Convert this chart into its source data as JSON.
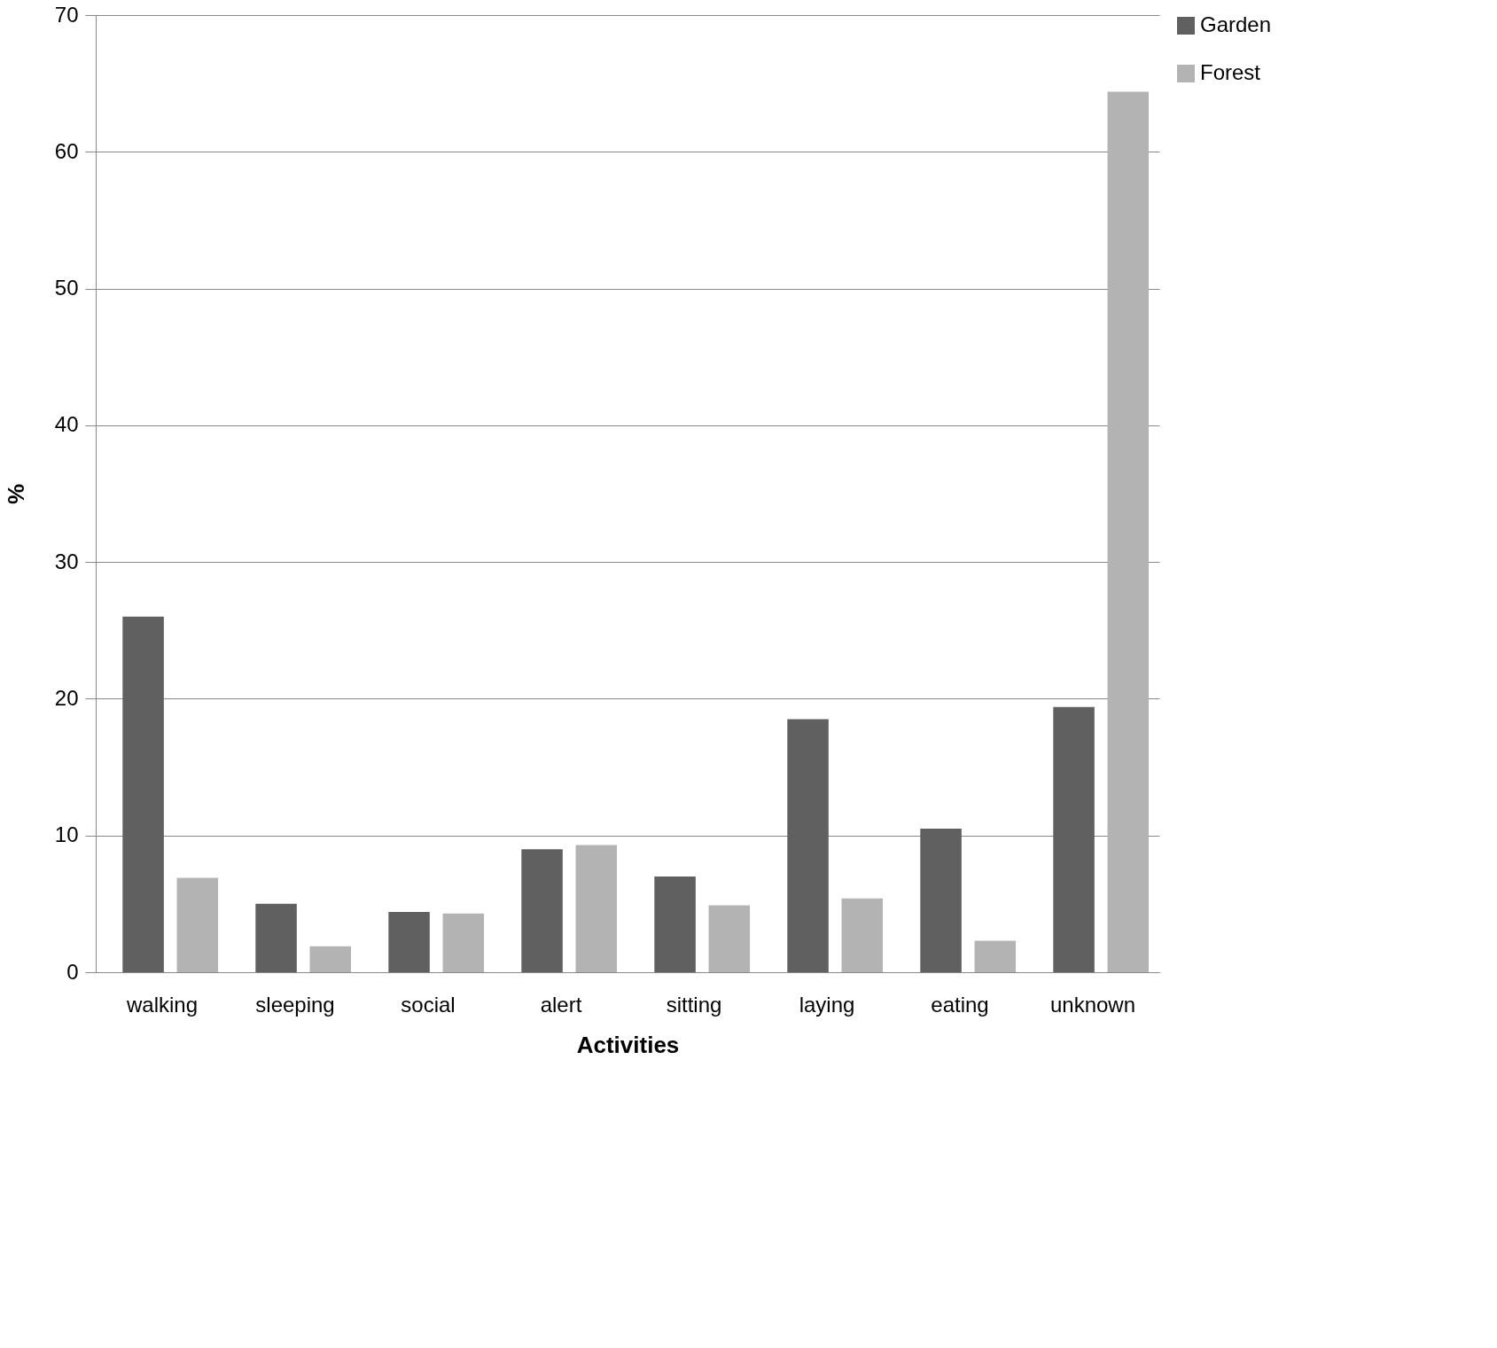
{
  "chart_data": {
    "type": "bar",
    "xlabel": "Activities",
    "ylabel": "%",
    "categories": [
      "walking",
      "sleeping",
      "social",
      "alert",
      "sitting",
      "laying",
      "eating",
      "unknown"
    ],
    "series": [
      {
        "name": "Garden",
        "color": "#606060",
        "values": [
          26.0,
          5.0,
          4.4,
          9.0,
          7.0,
          18.5,
          10.5,
          19.4
        ]
      },
      {
        "name": "Forest",
        "color": "#b3b3b3",
        "values": [
          6.9,
          1.9,
          4.3,
          9.3,
          4.9,
          5.4,
          2.3,
          64.4
        ]
      }
    ],
    "ylim": [
      0,
      70
    ],
    "yticks": [
      0,
      10,
      20,
      30,
      40,
      50,
      60,
      70
    ],
    "grid": "y",
    "legend": "right"
  }
}
